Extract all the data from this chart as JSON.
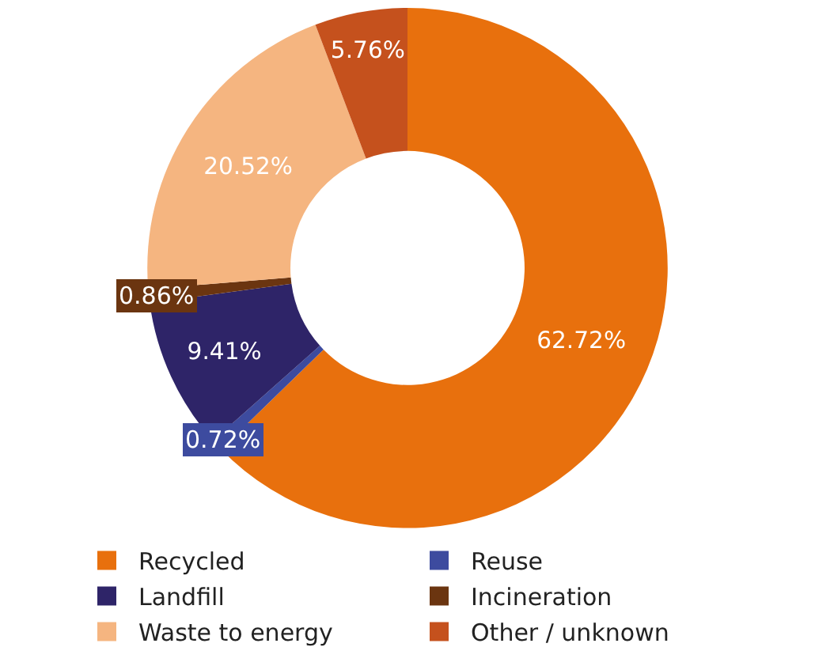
{
  "chart_data": {
    "type": "donut",
    "categories": [
      "Recycled",
      "Reuse",
      "Landfill",
      "Incineration",
      "Waste to energy",
      "Other / unknown"
    ],
    "values": [
      62.72,
      0.72,
      9.41,
      0.86,
      20.52,
      5.76
    ],
    "colors": [
      "#e8700d",
      "#3d4b9f",
      "#2e2468",
      "#6b3510",
      "#f5b580",
      "#c5511d"
    ],
    "value_labels": [
      "62.72%",
      "0.72%",
      "9.41%",
      "0.86%",
      "20.52%",
      "5.76%"
    ],
    "legend": "bottom"
  }
}
